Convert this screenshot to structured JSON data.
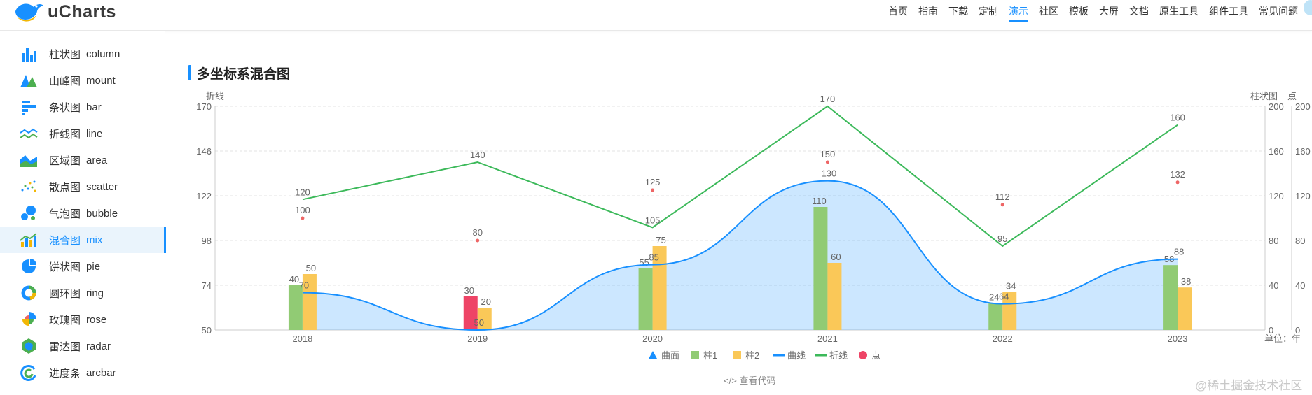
{
  "app": {
    "name": "uCharts"
  },
  "nav": [
    "首页",
    "指南",
    "下载",
    "定制",
    "演示",
    "社区",
    "模板",
    "大屏",
    "文档",
    "原生工具",
    "组件工具",
    "常见问题"
  ],
  "nav_active": "演示",
  "sidebar": [
    {
      "cn": "柱状图",
      "en": "column",
      "icon": "column-chart-icon"
    },
    {
      "cn": "山峰图",
      "en": "mount",
      "icon": "mountain-chart-icon"
    },
    {
      "cn": "条状图",
      "en": "bar",
      "icon": "bar-chart-icon"
    },
    {
      "cn": "折线图",
      "en": "line",
      "icon": "line-chart-icon"
    },
    {
      "cn": "区域图",
      "en": "area",
      "icon": "area-chart-icon"
    },
    {
      "cn": "散点图",
      "en": "scatter",
      "icon": "scatter-chart-icon"
    },
    {
      "cn": "气泡图",
      "en": "bubble",
      "icon": "bubble-chart-icon"
    },
    {
      "cn": "混合图",
      "en": "mix",
      "icon": "mix-chart-icon",
      "active": true
    },
    {
      "cn": "饼状图",
      "en": "pie",
      "icon": "pie-chart-icon"
    },
    {
      "cn": "圆环图",
      "en": "ring",
      "icon": "ring-chart-icon"
    },
    {
      "cn": "玫瑰图",
      "en": "rose",
      "icon": "rose-chart-icon"
    },
    {
      "cn": "雷达图",
      "en": "radar",
      "icon": "radar-chart-icon"
    },
    {
      "cn": "进度条",
      "en": "arcbar",
      "icon": "arcbar-chart-icon"
    }
  ],
  "page": {
    "title": "多坐标系混合图",
    "code_link": "</> 查看代码",
    "watermark": "@稀土掘金技术社区"
  },
  "colors": {
    "accent": "#1890ff",
    "col1": "#91cb74",
    "col2": "#fac858",
    "curve": "#1890ff",
    "line": "#3cb95a",
    "point": "#ee6666"
  },
  "chart_data": {
    "type": "mix",
    "categories": [
      "2018",
      "2019",
      "2020",
      "2021",
      "2022",
      "2023"
    ],
    "xunit": "单位：年",
    "axes": {
      "left": {
        "title": "折线",
        "min": 50,
        "max": 170,
        "ticks": [
          50,
          74,
          98,
          122,
          146,
          170
        ]
      },
      "right1": {
        "title": "柱状图",
        "min": 0,
        "max": 200,
        "ticks": [
          0,
          40,
          80,
          120,
          160,
          200
        ]
      },
      "right2": {
        "title": "点",
        "min": 0,
        "max": 200,
        "ticks": [
          0,
          40,
          80,
          120,
          160,
          200
        ]
      }
    },
    "series": [
      {
        "name": "曲面",
        "type": "area",
        "axis": "left",
        "values": [
          70,
          50,
          85,
          130,
          64,
          88
        ],
        "color": "#1890ff"
      },
      {
        "name": "柱1",
        "type": "column",
        "axis": "right1",
        "values": [
          40,
          30,
          55,
          110,
          24,
          58
        ],
        "color": "#91cb74",
        "highlight": {
          "index": 1,
          "color": "#ee4466"
        }
      },
      {
        "name": "柱2",
        "type": "column",
        "axis": "right1",
        "values": [
          50,
          20,
          75,
          60,
          34,
          38
        ],
        "color": "#fac858"
      },
      {
        "name": "曲线",
        "type": "curve",
        "axis": "left",
        "values": [
          70,
          50,
          85,
          130,
          64,
          88
        ],
        "color": "#1890ff"
      },
      {
        "name": "折线",
        "type": "line",
        "axis": "left",
        "values": [
          120,
          140,
          105,
          170,
          95,
          160
        ],
        "color": "#3cb95a"
      },
      {
        "name": "点",
        "type": "point",
        "axis": "right2",
        "values": [
          100,
          80,
          125,
          150,
          112,
          132
        ],
        "color": "#ee6666"
      }
    ],
    "legend": [
      {
        "name": "曲面",
        "marker": "triangle",
        "color": "#1890ff"
      },
      {
        "name": "柱1",
        "marker": "square",
        "color": "#91cb74"
      },
      {
        "name": "柱2",
        "marker": "square",
        "color": "#fac858"
      },
      {
        "name": "曲线",
        "marker": "line",
        "color": "#1890ff"
      },
      {
        "name": "折线",
        "marker": "line",
        "color": "#3cb95a"
      },
      {
        "name": "点",
        "marker": "circle",
        "color": "#ee4466"
      }
    ]
  }
}
